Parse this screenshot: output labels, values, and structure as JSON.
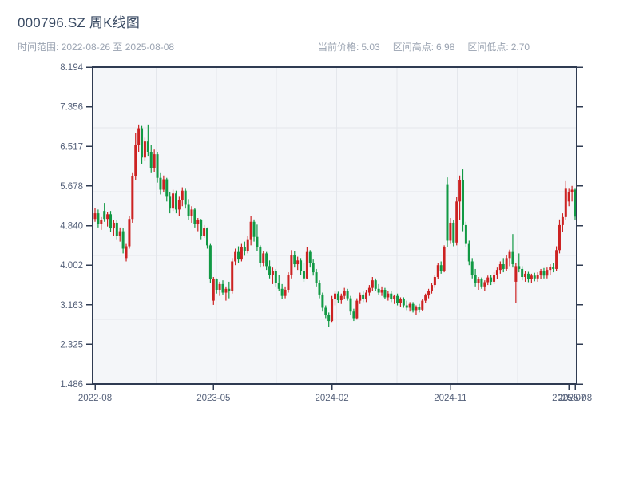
{
  "header": {
    "title": "000796.SZ 周K线图",
    "time_range": "时间范围: 2022-08-26 至 2025-08-08",
    "stats": [
      {
        "label": "当前价格:",
        "value": "5.03"
      },
      {
        "label": "区间高点:",
        "value": "6.98"
      },
      {
        "label": "区间低点:",
        "value": "2.70"
      }
    ]
  },
  "chart_data": {
    "type": "candlestick",
    "title": "000796.SZ 周K线图",
    "period": "weekly",
    "start_date": "2022-08-26",
    "end_date": "2025-08-08",
    "current_price": 5.03,
    "range_high": 6.98,
    "range_low": 2.7,
    "ylim": [
      1.486,
      8.194
    ],
    "y_ticks": [
      8.194,
      7.356,
      6.517,
      5.678,
      4.84,
      4.002,
      3.163,
      2.325,
      1.486
    ],
    "y_tick_labels": [
      "8.194",
      "7.356",
      "6.517",
      "5.678",
      "4.840",
      "4.002",
      "3.163",
      "2.325",
      "1.486"
    ],
    "x_tick_labels": [
      "2022-08",
      "2023-05",
      "2024-02",
      "2024-11",
      "2025-07",
      "2025-08"
    ],
    "x_tick_weeks": [
      0,
      38,
      76,
      114,
      152,
      154
    ],
    "grid": true,
    "legend": "none",
    "up_color": "#cc2222",
    "down_color": "#119944",
    "ohlc_format": [
      "open",
      "high",
      "low",
      "close"
    ],
    "ohlc": [
      [
        4.98,
        5.22,
        4.92,
        5.1
      ],
      [
        5.1,
        5.18,
        4.8,
        4.88
      ],
      [
        4.88,
        5.02,
        4.75,
        4.95
      ],
      [
        5.15,
        5.32,
        4.92,
        4.98
      ],
      [
        4.98,
        5.12,
        4.82,
        5.08
      ],
      [
        5.08,
        5.15,
        4.7,
        4.78
      ],
      [
        4.78,
        4.95,
        4.62,
        4.9
      ],
      [
        4.9,
        4.96,
        4.55,
        4.62
      ],
      [
        4.62,
        4.8,
        4.5,
        4.72
      ],
      [
        4.72,
        4.78,
        4.25,
        4.35
      ],
      [
        4.15,
        4.45,
        4.08,
        4.4
      ],
      [
        4.4,
        5.05,
        4.35,
        4.98
      ],
      [
        4.98,
        5.95,
        4.9,
        5.88
      ],
      [
        5.88,
        6.8,
        5.8,
        6.55
      ],
      [
        6.55,
        6.98,
        6.4,
        6.9
      ],
      [
        6.9,
        6.95,
        6.15,
        6.28
      ],
      [
        6.28,
        6.7,
        6.2,
        6.62
      ],
      [
        6.62,
        6.98,
        6.3,
        6.4
      ],
      [
        6.4,
        6.55,
        5.95,
        6.05
      ],
      [
        6.05,
        6.45,
        5.98,
        6.35
      ],
      [
        6.35,
        6.4,
        5.75,
        5.85
      ],
      [
        5.85,
        5.95,
        5.5,
        5.6
      ],
      [
        5.6,
        5.9,
        5.55,
        5.82
      ],
      [
        5.82,
        5.85,
        5.35,
        5.45
      ],
      [
        5.45,
        5.55,
        5.1,
        5.2
      ],
      [
        5.2,
        5.6,
        5.15,
        5.52
      ],
      [
        5.52,
        5.58,
        5.1,
        5.18
      ],
      [
        5.18,
        5.45,
        5.05,
        5.38
      ],
      [
        5.38,
        5.65,
        5.25,
        5.58
      ],
      [
        5.58,
        5.62,
        5.2,
        5.28
      ],
      [
        5.28,
        5.4,
        4.95,
        5.05
      ],
      [
        5.05,
        5.25,
        4.9,
        5.18
      ],
      [
        5.18,
        5.22,
        4.8,
        4.88
      ],
      [
        4.88,
        5.0,
        4.72,
        4.95
      ],
      [
        4.95,
        4.98,
        4.55,
        4.62
      ],
      [
        4.62,
        4.85,
        4.58,
        4.78
      ],
      [
        4.78,
        4.8,
        4.35,
        4.42
      ],
      [
        4.42,
        4.45,
        3.62,
        3.7
      ],
      [
        3.25,
        3.75,
        3.16,
        3.7
      ],
      [
        3.7,
        3.72,
        3.4,
        3.48
      ],
      [
        3.48,
        3.65,
        3.35,
        3.6
      ],
      [
        3.6,
        3.68,
        3.38,
        3.42
      ],
      [
        3.42,
        3.55,
        3.25,
        3.5
      ],
      [
        3.5,
        3.65,
        3.3,
        3.45
      ],
      [
        3.45,
        4.15,
        3.4,
        4.08
      ],
      [
        4.08,
        4.35,
        4.0,
        4.28
      ],
      [
        4.28,
        4.4,
        4.05,
        4.12
      ],
      [
        4.12,
        4.45,
        4.08,
        4.38
      ],
      [
        4.38,
        4.5,
        4.2,
        4.3
      ],
      [
        4.3,
        4.62,
        4.25,
        4.55
      ],
      [
        4.55,
        5.05,
        4.42,
        4.92
      ],
      [
        4.92,
        4.97,
        4.5,
        4.6
      ],
      [
        4.6,
        4.86,
        4.3,
        4.38
      ],
      [
        4.38,
        4.42,
        3.95,
        4.05
      ],
      [
        4.05,
        4.3,
        3.98,
        4.25
      ],
      [
        4.25,
        4.28,
        3.9,
        3.98
      ],
      [
        3.98,
        4.1,
        3.72,
        3.8
      ],
      [
        3.8,
        3.95,
        3.6,
        3.88
      ],
      [
        3.88,
        3.92,
        3.55,
        3.62
      ],
      [
        3.62,
        3.8,
        3.45,
        3.5
      ],
      [
        3.5,
        3.6,
        3.28,
        3.35
      ],
      [
        3.35,
        3.55,
        3.3,
        3.48
      ],
      [
        3.48,
        3.85,
        3.42,
        3.8
      ],
      [
        3.8,
        4.32,
        3.72,
        4.22
      ],
      [
        4.22,
        4.3,
        3.95,
        4.02
      ],
      [
        4.02,
        4.18,
        3.9,
        4.1
      ],
      [
        4.1,
        4.15,
        3.8,
        3.88
      ],
      [
        3.88,
        4.05,
        3.65,
        3.72
      ],
      [
        3.72,
        4.38,
        3.7,
        4.28
      ],
      [
        4.28,
        4.32,
        3.95,
        4.05
      ],
      [
        4.05,
        4.12,
        3.78,
        3.85
      ],
      [
        3.85,
        3.92,
        3.55,
        3.62
      ],
      [
        3.62,
        3.68,
        3.3,
        3.38
      ],
      [
        3.38,
        3.42,
        3.02,
        3.1
      ],
      [
        3.1,
        3.15,
        2.88,
        2.95
      ],
      [
        2.95,
        3.0,
        2.7,
        2.82
      ],
      [
        2.82,
        3.35,
        2.8,
        3.28
      ],
      [
        3.28,
        3.45,
        3.15,
        3.4
      ],
      [
        3.4,
        3.44,
        3.2,
        3.26
      ],
      [
        3.26,
        3.4,
        3.18,
        3.35
      ],
      [
        3.35,
        3.52,
        3.28,
        3.46
      ],
      [
        3.46,
        3.5,
        3.25,
        3.3
      ],
      [
        3.3,
        3.35,
        2.95,
        3.02
      ],
      [
        3.02,
        3.08,
        2.82,
        2.88
      ],
      [
        2.88,
        3.3,
        2.85,
        3.25
      ],
      [
        3.25,
        3.42,
        3.18,
        3.38
      ],
      [
        3.38,
        3.45,
        3.22,
        3.28
      ],
      [
        3.28,
        3.48,
        3.22,
        3.42
      ],
      [
        3.42,
        3.58,
        3.35,
        3.52
      ],
      [
        3.52,
        3.75,
        3.45,
        3.68
      ],
      [
        3.68,
        3.72,
        3.45,
        3.5
      ],
      [
        3.5,
        3.6,
        3.38,
        3.42
      ],
      [
        3.42,
        3.55,
        3.35,
        3.48
      ],
      [
        3.48,
        3.52,
        3.28,
        3.32
      ],
      [
        3.32,
        3.45,
        3.25,
        3.4
      ],
      [
        3.4,
        3.45,
        3.22,
        3.28
      ],
      [
        3.28,
        3.38,
        3.18,
        3.35
      ],
      [
        3.35,
        3.4,
        3.15,
        3.2
      ],
      [
        3.2,
        3.32,
        3.12,
        3.28
      ],
      [
        3.28,
        3.32,
        3.1,
        3.15
      ],
      [
        3.15,
        3.25,
        3.05,
        3.1
      ],
      [
        3.1,
        3.22,
        3.02,
        3.18
      ],
      [
        3.18,
        3.22,
        3.0,
        3.05
      ],
      [
        3.05,
        3.15,
        2.95,
        3.12
      ],
      [
        3.12,
        3.18,
        3.0,
        3.06
      ],
      [
        3.06,
        3.28,
        3.04,
        3.25
      ],
      [
        3.25,
        3.4,
        3.2,
        3.36
      ],
      [
        3.36,
        3.5,
        3.3,
        3.45
      ],
      [
        3.45,
        3.62,
        3.4,
        3.58
      ],
      [
        3.58,
        3.8,
        3.52,
        3.75
      ],
      [
        3.75,
        4.05,
        3.7,
        4.0
      ],
      [
        4.0,
        4.08,
        3.82,
        3.88
      ],
      [
        3.88,
        4.42,
        3.85,
        4.38
      ],
      [
        5.7,
        5.86,
        4.38,
        4.52
      ],
      [
        4.52,
        5.0,
        4.45,
        4.9
      ],
      [
        4.9,
        4.95,
        4.4,
        4.48
      ],
      [
        4.48,
        5.44,
        4.42,
        5.35
      ],
      [
        5.35,
        5.9,
        4.95,
        5.8
      ],
      [
        5.8,
        6.03,
        4.72,
        4.85
      ],
      [
        4.85,
        4.92,
        4.38,
        4.45
      ],
      [
        4.45,
        4.52,
        4.0,
        4.08
      ],
      [
        4.08,
        4.15,
        3.72,
        3.8
      ],
      [
        3.8,
        3.92,
        3.55,
        3.62
      ],
      [
        3.62,
        3.75,
        3.48,
        3.7
      ],
      [
        3.7,
        3.74,
        3.5,
        3.55
      ],
      [
        3.55,
        3.68,
        3.46,
        3.64
      ],
      [
        3.64,
        3.78,
        3.58,
        3.74
      ],
      [
        3.74,
        3.8,
        3.58,
        3.65
      ],
      [
        3.65,
        3.85,
        3.6,
        3.8
      ],
      [
        3.8,
        3.95,
        3.7,
        3.9
      ],
      [
        3.9,
        4.08,
        3.82,
        4.02
      ],
      [
        4.02,
        4.15,
        3.85,
        3.92
      ],
      [
        3.92,
        4.22,
        3.88,
        4.15
      ],
      [
        4.15,
        4.33,
        3.98,
        4.28
      ],
      [
        4.28,
        4.66,
        3.95,
        4.02
      ],
      [
        3.65,
        4.05,
        3.2,
        3.98
      ],
      [
        3.98,
        4.25,
        3.85,
        3.92
      ],
      [
        3.92,
        3.98,
        3.68,
        3.75
      ],
      [
        3.75,
        3.88,
        3.65,
        3.82
      ],
      [
        3.82,
        3.86,
        3.64,
        3.7
      ],
      [
        3.7,
        3.82,
        3.62,
        3.78
      ],
      [
        3.78,
        3.84,
        3.66,
        3.72
      ],
      [
        3.72,
        3.85,
        3.65,
        3.8
      ],
      [
        3.8,
        3.92,
        3.7,
        3.88
      ],
      [
        3.88,
        3.94,
        3.72,
        3.78
      ],
      [
        3.78,
        3.95,
        3.72,
        3.9
      ],
      [
        3.9,
        4.02,
        3.8,
        3.96
      ],
      [
        3.96,
        4.05,
        3.85,
        3.92
      ],
      [
        3.92,
        4.4,
        3.88,
        4.32
      ],
      [
        4.32,
        4.97,
        4.25,
        4.85
      ],
      [
        4.85,
        5.1,
        4.7,
        5.02
      ],
      [
        5.02,
        5.78,
        4.95,
        5.62
      ],
      [
        5.35,
        5.62,
        5.25,
        5.55
      ],
      [
        5.55,
        5.68,
        5.35,
        5.6
      ],
      [
        5.6,
        5.62,
        4.95,
        5.03
      ]
    ]
  },
  "colors": {
    "title": "#394a63",
    "subtitle": "#9aa3b1",
    "tick_label": "#55617a",
    "spine": "#2f3b52",
    "grid": "#e4e7ec",
    "plot_bg": "#f4f6f9",
    "up": "#cc2222",
    "down": "#119944"
  }
}
